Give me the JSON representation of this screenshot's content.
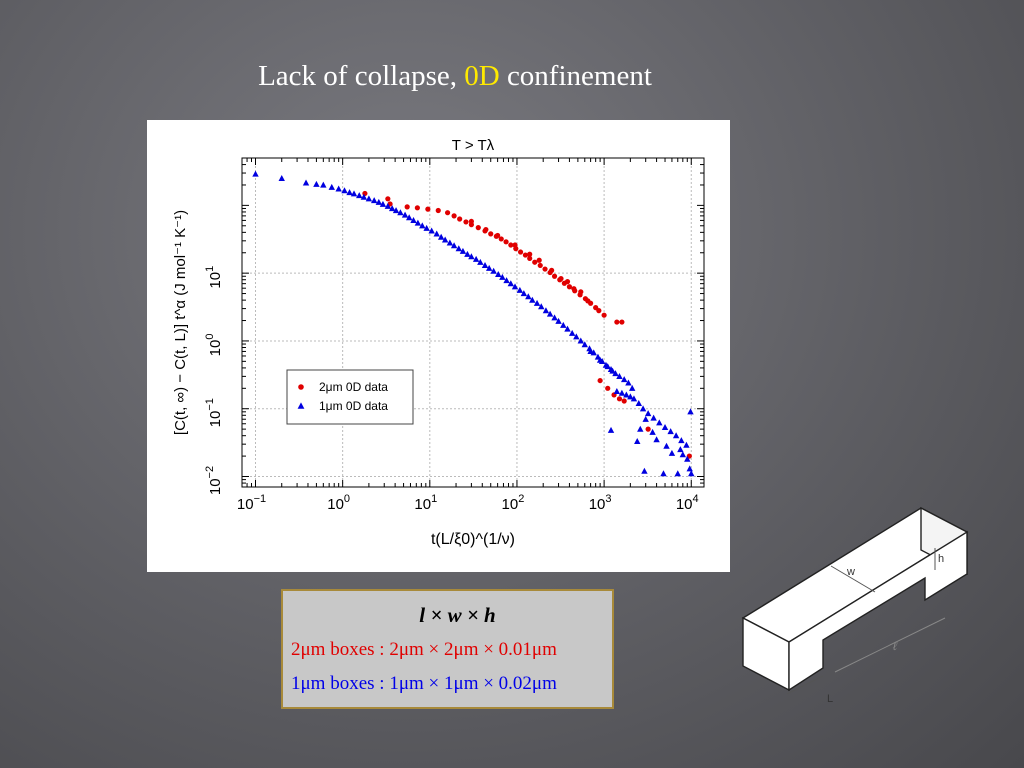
{
  "slide": {
    "title_prefix": "Lack of collapse, ",
    "title_highlight": "0D",
    "title_suffix": " confinement",
    "highlight_color": "#ffea00"
  },
  "chart_data": {
    "type": "scatter",
    "title": "T > Tλ",
    "xlabel": "t(L/ξ0)^(1/ν)",
    "ylabel": "[C(t, ∞) − C(t, L)] t^α (J mol⁻¹ K⁻¹)",
    "xscale": "log",
    "yscale": "log",
    "xlim": [
      0.07,
      14000
    ],
    "ylim": [
      0.007,
      500
    ],
    "grid": true,
    "legend_position": "center-left",
    "x_ticks": [
      {
        "value": 0.1,
        "label": "10",
        "exp": "−1"
      },
      {
        "value": 1,
        "label": "10",
        "exp": "0"
      },
      {
        "value": 10,
        "label": "10",
        "exp": "1"
      },
      {
        "value": 100,
        "label": "10",
        "exp": "2"
      },
      {
        "value": 1000,
        "label": "10",
        "exp": "3"
      },
      {
        "value": 10000,
        "label": "10",
        "exp": "4"
      }
    ],
    "y_ticks": [
      {
        "value": 0.01,
        "label": "10",
        "exp": "−2"
      },
      {
        "value": 0.1,
        "label": "10",
        "exp": "−1"
      },
      {
        "value": 1,
        "label": "10",
        "exp": "0"
      },
      {
        "value": 10,
        "label": "10",
        "exp": "1"
      }
    ],
    "series": [
      {
        "name": "2μm 0D data",
        "marker": "circle",
        "color": "#e00000",
        "points": [
          [
            1.8,
            150
          ],
          [
            3.3,
            125
          ],
          [
            3.5,
            105
          ],
          [
            5.5,
            95
          ],
          [
            7.2,
            92
          ],
          [
            9.5,
            88
          ],
          [
            12.5,
            84
          ],
          [
            16,
            78
          ],
          [
            19,
            70
          ],
          [
            22,
            63
          ],
          [
            26,
            57
          ],
          [
            30,
            52
          ],
          [
            36,
            47
          ],
          [
            43,
            42
          ],
          [
            50,
            38
          ],
          [
            58,
            35
          ],
          [
            66,
            32
          ],
          [
            75,
            29
          ],
          [
            85,
            26
          ],
          [
            97,
            23
          ],
          [
            110,
            20.5
          ],
          [
            125,
            18.5
          ],
          [
            140,
            16.5
          ],
          [
            160,
            14.5
          ],
          [
            185,
            13
          ],
          [
            210,
            11.5
          ],
          [
            240,
            10.2
          ],
          [
            270,
            9
          ],
          [
            310,
            8
          ],
          [
            350,
            7.1
          ],
          [
            400,
            6.3
          ],
          [
            460,
            5.5
          ],
          [
            530,
            4.8
          ],
          [
            610,
            4.2
          ],
          [
            700,
            3.6
          ],
          [
            800,
            3.1
          ],
          [
            250,
            11
          ],
          [
            380,
            7.5
          ],
          [
            540,
            5.3
          ],
          [
            870,
            2.8
          ],
          [
            1000,
            2.4
          ],
          [
            1400,
            1.9
          ],
          [
            1600,
            1.9
          ],
          [
            650,
            3.9
          ],
          [
            450,
            5.9
          ],
          [
            320,
            8.3
          ],
          [
            180,
            15.5
          ],
          [
            140,
            19
          ],
          [
            95,
            26
          ],
          [
            60,
            36
          ],
          [
            44,
            44
          ],
          [
            30,
            58
          ],
          [
            900,
            0.26
          ],
          [
            1100,
            0.2
          ],
          [
            1300,
            0.16
          ],
          [
            1500,
            0.14
          ],
          [
            1700,
            0.13
          ],
          [
            3200,
            0.05
          ],
          [
            9500,
            0.02
          ]
        ]
      },
      {
        "name": "1μm 0D data",
        "marker": "triangle",
        "color": "#0000e0",
        "points": [
          [
            0.1,
            290
          ],
          [
            0.2,
            250
          ],
          [
            0.38,
            215
          ],
          [
            0.5,
            205
          ],
          [
            0.6,
            200
          ],
          [
            0.75,
            185
          ],
          [
            0.9,
            175
          ],
          [
            1.05,
            165
          ],
          [
            1.2,
            155
          ],
          [
            1.35,
            148
          ],
          [
            1.55,
            140
          ],
          [
            1.75,
            132
          ],
          [
            2.0,
            125
          ],
          [
            2.3,
            118
          ],
          [
            2.6,
            111
          ],
          [
            2.9,
            104
          ],
          [
            3.3,
            97
          ],
          [
            3.7,
            90
          ],
          [
            4.1,
            84
          ],
          [
            4.6,
            78
          ],
          [
            5.2,
            72
          ],
          [
            5.8,
            66
          ],
          [
            6.5,
            60
          ],
          [
            7.3,
            55
          ],
          [
            8.2,
            50
          ],
          [
            9.2,
            46
          ],
          [
            10.5,
            42
          ],
          [
            12,
            38
          ],
          [
            13.5,
            34
          ],
          [
            15,
            31
          ],
          [
            17,
            28
          ],
          [
            19,
            25.5
          ],
          [
            21.5,
            23
          ],
          [
            24,
            21
          ],
          [
            27,
            19
          ],
          [
            30,
            17.5
          ],
          [
            34,
            16
          ],
          [
            38,
            14.5
          ],
          [
            43,
            13
          ],
          [
            48,
            11.8
          ],
          [
            54,
            10.7
          ],
          [
            61,
            9.6
          ],
          [
            68,
            8.7
          ],
          [
            76,
            7.8
          ],
          [
            85,
            7
          ],
          [
            95,
            6.3
          ],
          [
            108,
            5.6
          ],
          [
            120,
            5
          ],
          [
            135,
            4.5
          ],
          [
            150,
            4
          ],
          [
            170,
            3.6
          ],
          [
            190,
            3.2
          ],
          [
            215,
            2.8
          ],
          [
            240,
            2.5
          ],
          [
            270,
            2.2
          ],
          [
            300,
            1.95
          ],
          [
            340,
            1.7
          ],
          [
            380,
            1.5
          ],
          [
            430,
            1.3
          ],
          [
            480,
            1.15
          ],
          [
            540,
            1.0
          ],
          [
            600,
            0.88
          ],
          [
            680,
            0.77
          ],
          [
            760,
            0.67
          ],
          [
            850,
            0.58
          ],
          [
            950,
            0.5
          ],
          [
            1050,
            0.44
          ],
          [
            1200,
            0.38
          ],
          [
            1350,
            0.33
          ],
          [
            700,
            0.7
          ],
          [
            900,
            0.52
          ],
          [
            1100,
            0.42
          ],
          [
            1250,
            0.36
          ],
          [
            1500,
            0.3
          ],
          [
            1700,
            0.27
          ],
          [
            1900,
            0.24
          ],
          [
            2100,
            0.2
          ],
          [
            1400,
            0.18
          ],
          [
            1600,
            0.17
          ],
          [
            1800,
            0.16
          ],
          [
            2000,
            0.15
          ],
          [
            2200,
            0.14
          ],
          [
            2500,
            0.12
          ],
          [
            2800,
            0.1
          ],
          [
            3200,
            0.085
          ],
          [
            3700,
            0.073
          ],
          [
            4300,
            0.062
          ],
          [
            5000,
            0.053
          ],
          [
            5800,
            0.046
          ],
          [
            6700,
            0.04
          ],
          [
            7700,
            0.034
          ],
          [
            8800,
            0.029
          ],
          [
            9800,
            0.09
          ],
          [
            2600,
            0.05
          ],
          [
            3000,
            0.07
          ],
          [
            4000,
            0.035
          ],
          [
            6000,
            0.022
          ],
          [
            7500,
            0.025
          ],
          [
            9000,
            0.018
          ],
          [
            2400,
            0.033
          ],
          [
            3600,
            0.045
          ],
          [
            5200,
            0.028
          ],
          [
            8000,
            0.021
          ],
          [
            9600,
            0.013
          ],
          [
            1200,
            0.048
          ],
          [
            2900,
            0.012
          ],
          [
            4800,
            0.011
          ],
          [
            7000,
            0.011
          ],
          [
            10000,
            0.011
          ]
        ]
      }
    ]
  },
  "dimensions": {
    "header": "l  ×  w  ×  h",
    "row_2um": "2μm boxes : 2μm × 2μm × 0.01μm",
    "row_1um": "1μm boxes : 1μm × 1μm × 0.02μm"
  },
  "diagram": {
    "label_w": "w",
    "label_h": "h",
    "label_l": "ℓ",
    "label_L": "L"
  }
}
